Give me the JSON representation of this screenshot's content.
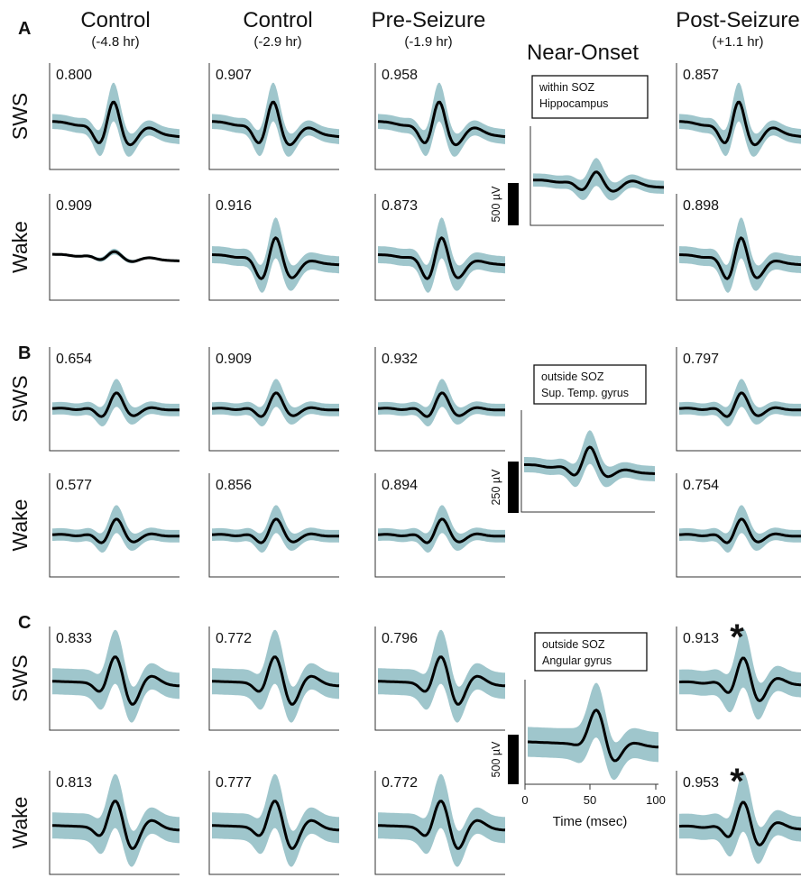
{
  "figure": {
    "columns": [
      {
        "title": "Control",
        "subtitle": "(-4.8 hr)"
      },
      {
        "title": "Control",
        "subtitle": "(-2.9 hr)"
      },
      {
        "title": "Pre-Seizure",
        "subtitle": "(-1.9 hr)"
      },
      {
        "title": "Near-Onset",
        "subtitle": ""
      },
      {
        "title": "Post-Seizure",
        "subtitle": "(+1.1 hr)"
      }
    ],
    "state_labels": {
      "sws": "SWS",
      "wake": "Wake"
    },
    "time_axis": {
      "label": "Time (msec)",
      "ticks": [
        "0",
        "50",
        "100"
      ]
    },
    "colors": {
      "band": "#9fc6cc",
      "line": "#000000"
    },
    "significance_marker": "*"
  },
  "chart_data": [
    {
      "panel": "A",
      "type": "line",
      "scale_bar": "500 µV",
      "near_onset_box": [
        "within SOZ",
        "Hippocampus"
      ],
      "correlations": {
        "sws": [
          "0.800",
          "0.907",
          "0.958",
          "0.857"
        ],
        "wake": [
          "0.909",
          "0.916",
          "0.873",
          "0.898"
        ]
      },
      "significant": {
        "sws": [
          false,
          false,
          false,
          false
        ],
        "wake": [
          false,
          false,
          false,
          false
        ]
      }
    },
    {
      "panel": "B",
      "type": "line",
      "scale_bar": "250 µV",
      "near_onset_box": [
        "outside SOZ",
        "Sup. Temp. gyrus"
      ],
      "correlations": {
        "sws": [
          "0.654",
          "0.909",
          "0.932",
          "0.797"
        ],
        "wake": [
          "0.577",
          "0.856",
          "0.894",
          "0.754"
        ]
      },
      "significant": {
        "sws": [
          false,
          false,
          false,
          false
        ],
        "wake": [
          false,
          false,
          false,
          false
        ]
      }
    },
    {
      "panel": "C",
      "type": "line",
      "scale_bar": "500 µV",
      "near_onset_box": [
        "outside SOZ",
        "Angular gyrus"
      ],
      "correlations": {
        "sws": [
          "0.833",
          "0.772",
          "0.796",
          "0.913"
        ],
        "wake": [
          "0.813",
          "0.777",
          "0.772",
          "0.953"
        ]
      },
      "significant": {
        "sws": [
          false,
          false,
          false,
          true
        ],
        "wake": [
          false,
          false,
          false,
          true
        ]
      }
    }
  ]
}
